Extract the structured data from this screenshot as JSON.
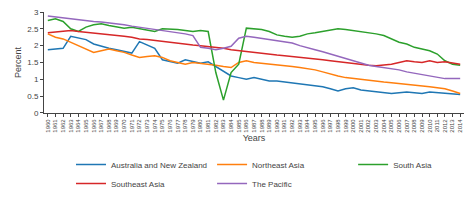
{
  "chart_data": {
    "type": "line",
    "xlabel": "Years",
    "ylabel": "Percent",
    "x": [
      1960,
      1961,
      1962,
      1963,
      1964,
      1965,
      1966,
      1967,
      1968,
      1969,
      1970,
      1971,
      1972,
      1973,
      1974,
      1975,
      1976,
      1977,
      1978,
      1979,
      1980,
      1981,
      1982,
      1983,
      1984,
      1985,
      1986,
      1987,
      1988,
      1989,
      1990,
      1991,
      1992,
      1993,
      1994,
      1995,
      1996,
      1997,
      1998,
      1999,
      2000,
      2001,
      2002,
      2003,
      2004,
      2005,
      2006,
      2007,
      2008,
      2009,
      2010,
      2011,
      2012,
      2013,
      2014
    ],
    "series": [
      {
        "name": "Australia and New Zealand",
        "values": [
          1.88,
          1.9,
          1.92,
          2.28,
          2.22,
          2.18,
          2.05,
          1.98,
          1.92,
          1.88,
          1.82,
          1.78,
          2.12,
          2.02,
          1.92,
          1.58,
          1.52,
          1.48,
          1.58,
          1.52,
          1.48,
          1.52,
          1.38,
          1.22,
          1.1,
          1.05,
          1.0,
          1.05,
          1.0,
          0.95,
          0.95,
          0.92,
          0.9,
          0.88,
          0.85,
          0.8,
          0.78,
          0.72,
          0.65,
          0.72,
          0.75,
          0.68,
          0.65,
          0.62,
          0.6,
          0.58,
          0.6,
          0.62,
          0.6,
          0.58,
          0.62,
          0.6,
          0.58,
          0.55,
          0.55
        ]
      },
      {
        "name": "Northeast Asia",
        "values": [
          2.35,
          2.25,
          2.2,
          2.1,
          2.0,
          1.9,
          1.8,
          1.85,
          1.9,
          1.85,
          1.8,
          1.72,
          1.65,
          1.68,
          1.7,
          1.65,
          1.55,
          1.5,
          1.45,
          1.5,
          1.48,
          1.45,
          1.42,
          1.38,
          1.35,
          1.5,
          1.55,
          1.5,
          1.48,
          1.45,
          1.42,
          1.4,
          1.38,
          1.35,
          1.32,
          1.28,
          1.22,
          1.15,
          1.1,
          1.05,
          1.02,
          1.0,
          0.98,
          0.95,
          0.92,
          0.9,
          0.88,
          0.85,
          0.82,
          0.8,
          0.78,
          0.75,
          0.72,
          0.65,
          0.58
        ]
      },
      {
        "name": "South Asia",
        "values": [
          2.75,
          2.8,
          2.72,
          2.5,
          2.42,
          2.55,
          2.62,
          2.65,
          2.6,
          2.55,
          2.52,
          2.55,
          2.5,
          2.45,
          2.42,
          2.5,
          2.5,
          2.48,
          2.45,
          2.42,
          2.45,
          2.42,
          1.2,
          0.38,
          1.2,
          1.45,
          2.52,
          2.5,
          2.48,
          2.42,
          2.32,
          2.28,
          2.25,
          2.28,
          2.35,
          2.38,
          2.42,
          2.45,
          2.5,
          2.48,
          2.45,
          2.42,
          2.38,
          2.35,
          2.3,
          2.2,
          2.1,
          2.05,
          1.95,
          1.9,
          1.85,
          1.75,
          1.55,
          1.45,
          1.42
        ]
      },
      {
        "name": "Southeast Asia",
        "values": [
          2.38,
          2.4,
          2.42,
          2.45,
          2.42,
          2.4,
          2.38,
          2.35,
          2.32,
          2.3,
          2.28,
          2.25,
          2.2,
          2.18,
          2.15,
          2.12,
          2.1,
          2.08,
          2.05,
          2.02,
          2.0,
          1.98,
          1.95,
          1.92,
          1.88,
          1.85,
          1.82,
          1.8,
          1.78,
          1.75,
          1.72,
          1.7,
          1.68,
          1.65,
          1.62,
          1.6,
          1.58,
          1.55,
          1.52,
          1.5,
          1.48,
          1.45,
          1.42,
          1.4,
          1.42,
          1.45,
          1.5,
          1.55,
          1.52,
          1.5,
          1.55,
          1.5,
          1.52,
          1.48,
          1.45
        ]
      },
      {
        "name": "The Pacific",
        "values": [
          2.88,
          2.85,
          2.82,
          2.8,
          2.78,
          2.75,
          2.72,
          2.7,
          2.68,
          2.65,
          2.62,
          2.58,
          2.55,
          2.52,
          2.48,
          2.45,
          2.42,
          2.38,
          2.35,
          2.3,
          1.95,
          1.92,
          1.88,
          1.92,
          1.98,
          2.22,
          2.28,
          2.25,
          2.22,
          2.18,
          2.15,
          2.12,
          2.08,
          2.0,
          1.95,
          1.88,
          1.82,
          1.75,
          1.68,
          1.62,
          1.55,
          1.48,
          1.42,
          1.38,
          1.35,
          1.32,
          1.28,
          1.22,
          1.18,
          1.12,
          1.08,
          1.05,
          1.02,
          1.02,
          1.02
        ]
      }
    ],
    "xlim": [
      1959.5,
      2014.5
    ],
    "xticks": [
      1960,
      1961,
      1962,
      1963,
      1964,
      1965,
      1966,
      1967,
      1968,
      1969,
      1970,
      1971,
      1972,
      1973,
      1974,
      1975,
      1976,
      1977,
      1978,
      1979,
      1980,
      1981,
      1982,
      1983,
      1984,
      1985,
      1986,
      1987,
      1988,
      1989,
      1990,
      1991,
      1992,
      1993,
      1994,
      1995,
      1996,
      1997,
      1998,
      1999,
      2000,
      2001,
      2002,
      2003,
      2004,
      2005,
      2006,
      2007,
      2008,
      2009,
      2010,
      2011,
      2012,
      2013,
      2014
    ],
    "ylim": [
      0,
      3.0
    ],
    "yticks": [
      0,
      0.5,
      1,
      1.5,
      2,
      2.5,
      3
    ],
    "grid": false,
    "legend": "bottom"
  }
}
